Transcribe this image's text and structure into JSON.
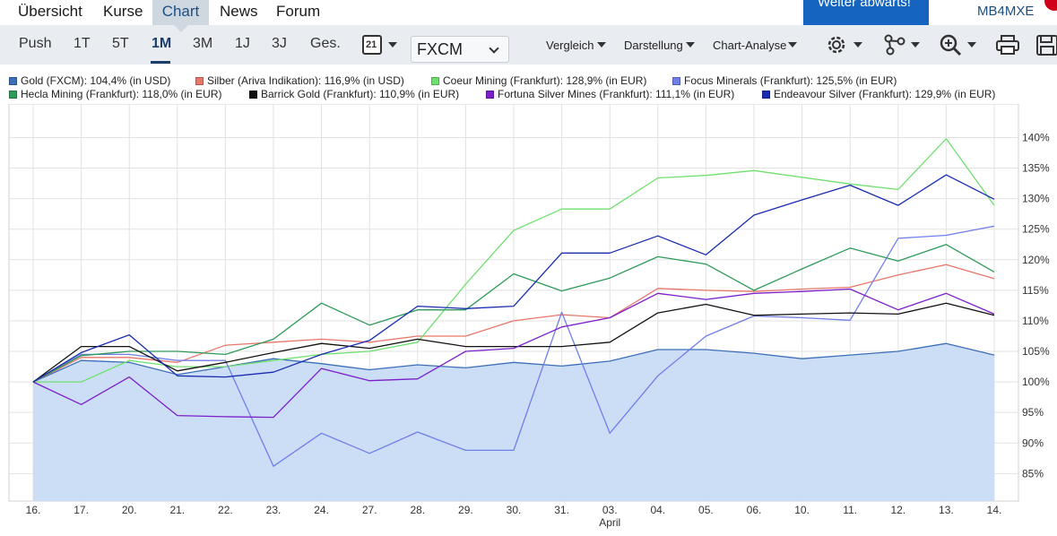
{
  "topnav": {
    "tabs": [
      {
        "label": "Übersicht",
        "active": false
      },
      {
        "label": "Kurse",
        "active": false
      },
      {
        "label": "Chart",
        "active": true
      },
      {
        "label": "News",
        "active": false
      },
      {
        "label": "Forum",
        "active": false
      }
    ],
    "promo_label": "Weiter abwärts!",
    "wkn": "MB4MXE"
  },
  "toolbar": {
    "ranges": [
      "Push",
      "1T",
      "5T",
      "1M",
      "3M",
      "1J",
      "3J",
      "Ges."
    ],
    "active_range": "1M",
    "calendar_day": "21",
    "exchange": "FXCM",
    "menus": [
      "Vergleich",
      "Darstellung",
      "Chart-Analyse"
    ],
    "icons": [
      "settings-icon",
      "indicators-icon",
      "zoom-icon",
      "print-icon",
      "save-icon"
    ]
  },
  "colors": {
    "gold": "#3d6fb8",
    "gold_fill": "#c9dcf5",
    "silber": "#e8776b",
    "coeur": "#6fe06f",
    "focus": "#6f7fe8",
    "hecla": "#2e9a5a",
    "barrick": "#111111",
    "fortuna": "#7a1fc9",
    "endeavour": "#1a2cb0",
    "grid": "#e2e2e2"
  },
  "chart_data": {
    "type": "line",
    "x_labels": [
      "16.",
      "17.",
      "20.",
      "21.",
      "22.",
      "23.",
      "24.",
      "27.",
      "28.",
      "29.",
      "30.",
      "31.",
      "03.",
      "04.",
      "05.",
      "06.",
      "10.",
      "11.",
      "12.",
      "13.",
      "14."
    ],
    "month_label": "April",
    "month_label_under": "03.",
    "y_ticks": [
      85,
      90,
      95,
      100,
      105,
      110,
      115,
      120,
      125,
      130,
      135,
      140
    ],
    "y_tick_suffix": "%",
    "ylim": [
      80.5,
      145.5
    ],
    "grid": true,
    "legend_position": "top",
    "series": [
      {
        "name": "Gold (FXCM): 104,4% (in USD)",
        "color_key": "gold",
        "area": true,
        "values": [
          100,
          103.5,
          103.2,
          101.2,
          102.5,
          103.8,
          103.0,
          102.0,
          102.8,
          102.3,
          103.2,
          102.6,
          103.4,
          105.3,
          105.3,
          104.7,
          103.8,
          104.4,
          105.0,
          106.3,
          104.4
        ]
      },
      {
        "name": "Silber (Ariva Indikation): 116,9% (in USD)",
        "color_key": "silber",
        "values": [
          100,
          104.0,
          104.0,
          103.2,
          106.0,
          106.5,
          107.0,
          106.5,
          107.5,
          107.5,
          110.0,
          111.0,
          110.5,
          115.3,
          115.0,
          114.8,
          115.2,
          115.5,
          117.5,
          119.2,
          116.9
        ]
      },
      {
        "name": "Coeur Mining (Frankfurt): 128,9% (in EUR)",
        "color_key": "coeur",
        "values": [
          100,
          100,
          103.5,
          102.5,
          102.5,
          103.5,
          104.5,
          105.0,
          106.5,
          116.0,
          124.8,
          128.3,
          128.3,
          133.4,
          133.8,
          134.6,
          133.5,
          132.4,
          131.5,
          139.8,
          128.9
        ]
      },
      {
        "name": "Focus Minerals (Frankfurt): 125,5% (in EUR)",
        "color_key": "focus",
        "values": [
          100,
          104.5,
          104.5,
          103.5,
          103.5,
          86.2,
          91.6,
          88.3,
          91.8,
          88.8,
          88.8,
          111.4,
          91.6,
          101.0,
          107.5,
          110.8,
          110.5,
          110.1,
          123.5,
          124.0,
          125.5
        ]
      },
      {
        "name": "Hecla Mining (Frankfurt): 118,0% (in EUR)",
        "color_key": "hecla",
        "values": [
          100,
          104.3,
          105.0,
          105.0,
          104.5,
          107.0,
          112.9,
          109.3,
          111.8,
          111.8,
          117.7,
          114.9,
          117.0,
          120.5,
          119.3,
          115.0,
          118.5,
          121.9,
          119.8,
          122.5,
          118.0
        ]
      },
      {
        "name": "Barrick Gold (Frankfurt): 110,9% (in EUR)",
        "color_key": "barrick",
        "values": [
          100,
          105.8,
          105.8,
          101.8,
          103.2,
          104.8,
          106.3,
          105.5,
          107.0,
          105.8,
          105.8,
          105.8,
          106.5,
          111.3,
          112.7,
          110.9,
          111.1,
          111.3,
          111.1,
          112.9,
          110.9
        ]
      },
      {
        "name": "Fortuna Silver Mines (Frankfurt): 111,1% (in EUR)",
        "color_key": "fortuna",
        "values": [
          100,
          96.3,
          100.8,
          94.5,
          94.3,
          94.2,
          102.2,
          100.2,
          100.5,
          105.0,
          105.5,
          109.0,
          110.5,
          114.5,
          113.5,
          114.5,
          114.8,
          115.2,
          111.8,
          114.5,
          111.1
        ]
      },
      {
        "name": "Endeavour Silver (Frankfurt): 129,9% (in EUR)",
        "color_key": "endeavour",
        "values": [
          100,
          104.8,
          107.7,
          101.0,
          100.8,
          101.6,
          104.5,
          106.8,
          112.4,
          112.0,
          112.4,
          121.1,
          121.1,
          123.9,
          120.8,
          127.3,
          129.8,
          132.2,
          128.9,
          133.9,
          129.9
        ]
      }
    ]
  }
}
